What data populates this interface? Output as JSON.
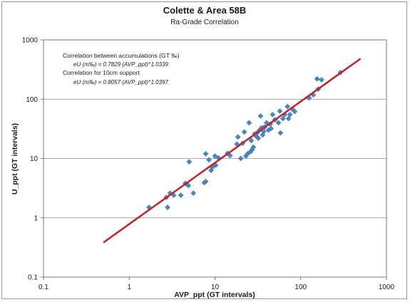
{
  "chart_data": {
    "type": "scatter",
    "title": "Colette & Area 58B",
    "subtitle": "Ra-Grade Correlation",
    "xlabel": "AVP_ppt (GT intervals)",
    "ylabel": "U_ppt (GT intervals)",
    "x_scale": "log",
    "y_scale": "log",
    "xlim": [
      0.1,
      1000
    ],
    "ylim": [
      0.1,
      1000
    ],
    "x_ticks": [
      "0.1",
      "1",
      "10",
      "100",
      "1000"
    ],
    "y_ticks": [
      "0.1",
      "1",
      "10",
      "100",
      "1000"
    ],
    "grid": "horizontal",
    "annotations": [
      "Correlation between accumulations (GT ‰)",
      "eU (m‰) = 0.7829 (AVP_ppt)^1.0339",
      "Correlation for 10cm support",
      "eU (m‰) = 0.8057 (AVP_ppt)^1.0397"
    ],
    "series": [
      {
        "marker": "diamond",
        "color": "#4a86c0",
        "points": [
          [
            1.7,
            1.5
          ],
          [
            2.7,
            2.2
          ],
          [
            2.8,
            1.5
          ],
          [
            3.0,
            2.6
          ],
          [
            3.3,
            2.4
          ],
          [
            4.0,
            2.4
          ],
          [
            4.5,
            3.8
          ],
          [
            4.9,
            3.5
          ],
          [
            5.0,
            8.8
          ],
          [
            5.6,
            2.6
          ],
          [
            7.5,
            3.9
          ],
          [
            7.8,
            4.1
          ],
          [
            7.8,
            12.0
          ],
          [
            8.5,
            9.5
          ],
          [
            9.0,
            6.3
          ],
          [
            9.3,
            7.1
          ],
          [
            10.0,
            11.0
          ],
          [
            10.2,
            7.7
          ],
          [
            11.0,
            10.2
          ],
          [
            14.0,
            12.2
          ],
          [
            15.0,
            11.2
          ],
          [
            18.0,
            17.5
          ],
          [
            18.5,
            23.0
          ],
          [
            20.0,
            10.0
          ],
          [
            21.0,
            18.0
          ],
          [
            22.0,
            28.0
          ],
          [
            23.0,
            11.0
          ],
          [
            24.0,
            12.0
          ],
          [
            25.0,
            40.0
          ],
          [
            26.0,
            13.0
          ],
          [
            26.5,
            20.0
          ],
          [
            27.0,
            14.0
          ],
          [
            28.0,
            15.5
          ],
          [
            29.0,
            26.0
          ],
          [
            30.0,
            24.0
          ],
          [
            31.0,
            27.0
          ],
          [
            32.0,
            22.0
          ],
          [
            33.0,
            30.0
          ],
          [
            34.0,
            52.0
          ],
          [
            35.0,
            33.0
          ],
          [
            36.0,
            25.0
          ],
          [
            37.0,
            28.5
          ],
          [
            38.0,
            34.0
          ],
          [
            40.0,
            40.0
          ],
          [
            42.0,
            30.0
          ],
          [
            44.0,
            38.0
          ],
          [
            45.0,
            32.0
          ],
          [
            47.0,
            55.0
          ],
          [
            50.0,
            45.0
          ],
          [
            55.0,
            40.0
          ],
          [
            57.0,
            63.0
          ],
          [
            58.0,
            27.0
          ],
          [
            62.0,
            47.0
          ],
          [
            65.0,
            55.0
          ],
          [
            70.0,
            75.0
          ],
          [
            72.0,
            47.0
          ],
          [
            75.0,
            55.0
          ],
          [
            80.0,
            68.0
          ],
          [
            85.0,
            62.0
          ],
          [
            125.0,
            105.0
          ],
          [
            140.0,
            118.0
          ],
          [
            160.0,
            148.0
          ],
          [
            155.0,
            220.0
          ],
          [
            175.0,
            212.0
          ],
          [
            290.0,
            282.0
          ]
        ]
      },
      {
        "type": "line",
        "color": "#c0272d",
        "equation": "eU (m‰) = 0.7829 (AVP_ppt)^1.0339",
        "x_range": [
          0.5,
          500
        ]
      }
    ]
  }
}
